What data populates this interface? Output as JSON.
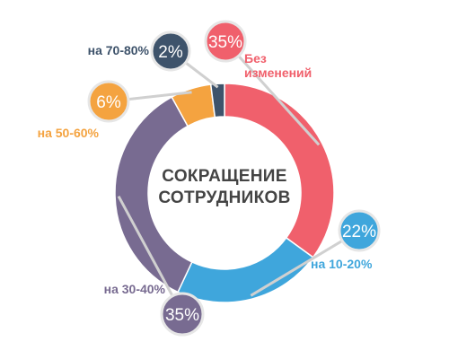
{
  "chart_data": {
    "type": "pie",
    "variant": "donut",
    "title": "СОКРАЩЕНИЕ СОТРУДНИКОВ",
    "title_lines": [
      "СОКРАЩЕНИЕ",
      "СОТРУДНИКОВ"
    ],
    "slices": [
      {
        "label": "Без изменений",
        "label_lines": [
          "Без",
          "изменений"
        ],
        "value": 35,
        "display": "35%",
        "color": "#f0606c"
      },
      {
        "label": "на 10-20%",
        "label_lines": [
          "на 10-20%"
        ],
        "value": 22,
        "display": "22%",
        "color": "#3fa6dc"
      },
      {
        "label": "на 30-40%",
        "label_lines": [
          "на 30-40%"
        ],
        "value": 35,
        "display": "35%",
        "color": "#786b91"
      },
      {
        "label": "на 50-60%",
        "label_lines": [
          "на 50-60%"
        ],
        "value": 6,
        "display": "6%",
        "color": "#f4a340"
      },
      {
        "label": "на 70-80%",
        "label_lines": [
          "на 70-80%"
        ],
        "value": 2,
        "display": "2%",
        "color": "#3e536b"
      }
    ]
  }
}
